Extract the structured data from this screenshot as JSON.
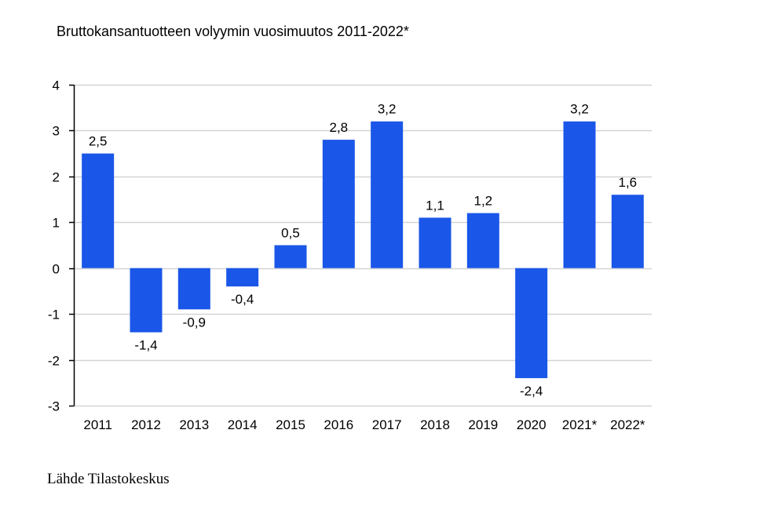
{
  "title": "Bruttokansantuotteen volyymin vuosimuutos 2011-2022*",
  "source": "Lähde Tilastokeskus",
  "colors": {
    "bar": "#1a56e8",
    "grid": "#d4d4d4",
    "axis": "#000000"
  },
  "chart_data": {
    "type": "bar",
    "categories": [
      "2011",
      "2012",
      "2013",
      "2014",
      "2015",
      "2016",
      "2017",
      "2018",
      "2019",
      "2020",
      "2021*",
      "2022*"
    ],
    "values": [
      2.5,
      -1.4,
      -0.9,
      -0.4,
      0.5,
      2.8,
      3.2,
      1.1,
      1.2,
      -2.4,
      3.2,
      1.6
    ],
    "data_labels": [
      "2,5",
      "-1,4",
      "-0,9",
      "-0,4",
      "0,5",
      "2,8",
      "3,2",
      "1,1",
      "1,2",
      "-2,4",
      "3,2",
      "1,6"
    ],
    "yticks": [
      4,
      3,
      2,
      1,
      0,
      -1,
      -2,
      -3
    ],
    "ytick_labels": [
      "4",
      "3",
      "2",
      "1",
      "0",
      "-1",
      "-2",
      "-3"
    ],
    "ylim": [
      -3,
      4
    ],
    "grid": true,
    "legend": "none"
  }
}
